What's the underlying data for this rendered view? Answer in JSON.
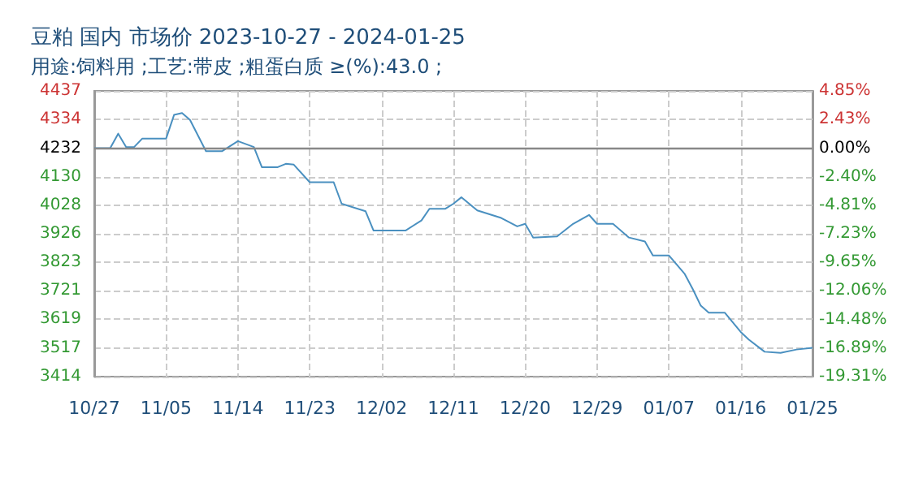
{
  "chart_data": {
    "type": "line",
    "title": "豆粕 国内 市场价 2023-10-27 - 2024-01-25",
    "subtitle": "用途:饲料用 ;工艺:带皮 ;粗蛋白质 ≥(%):43.0 ;",
    "x": [
      "2023-10-27",
      "2023-10-29",
      "2023-10-30",
      "2023-10-31",
      "2023-11-01",
      "2023-11-02",
      "2023-11-05",
      "2023-11-06",
      "2023-11-07",
      "2023-11-08",
      "2023-11-10",
      "2023-11-12",
      "2023-11-14",
      "2023-11-16",
      "2023-11-17",
      "2023-11-19",
      "2023-11-20",
      "2023-11-21",
      "2023-11-23",
      "2023-11-26",
      "2023-11-27",
      "2023-11-30",
      "2023-12-01",
      "2023-12-05",
      "2023-12-07",
      "2023-12-08",
      "2023-12-10",
      "2023-12-11",
      "2023-12-12",
      "2023-12-14",
      "2023-12-17",
      "2023-12-19",
      "2023-12-20",
      "2023-12-21",
      "2023-12-24",
      "2023-12-26",
      "2023-12-28",
      "2023-12-29",
      "2023-12-31",
      "2024-01-02",
      "2024-01-04",
      "2024-01-05",
      "2024-01-07",
      "2024-01-09",
      "2024-01-10",
      "2024-01-11",
      "2024-01-12",
      "2024-01-14",
      "2024-01-16",
      "2024-01-17",
      "2024-01-19",
      "2024-01-21",
      "2024-01-23",
      "2024-01-25"
    ],
    "series": [
      {
        "color": "#4a90c0",
        "values": [
          4232,
          4232,
          4284,
          4236,
          4236,
          4266,
          4266,
          4351,
          4358,
          4333,
          4221,
          4221,
          4257,
          4236,
          4164,
          4164,
          4176,
          4173,
          4110,
          4110,
          4033,
          4006,
          3937,
          3937,
          3973,
          4015,
          4015,
          4033,
          4056,
          4009,
          3982,
          3952,
          3961,
          3912,
          3916,
          3961,
          3993,
          3961,
          3961,
          3912,
          3898,
          3848,
          3848,
          3781,
          3727,
          3668,
          3643,
          3643,
          3574,
          3547,
          3503,
          3499,
          3511,
          3517
        ]
      }
    ],
    "xlim": [
      "2023-10-27",
      "2024-01-25"
    ],
    "xticks": [
      {
        "value": "2023-10-27",
        "label": "10/27"
      },
      {
        "value": "2023-11-05",
        "label": "11/05"
      },
      {
        "value": "2023-11-14",
        "label": "11/14"
      },
      {
        "value": "2023-11-23",
        "label": "11/23"
      },
      {
        "value": "2023-12-02",
        "label": "12/02"
      },
      {
        "value": "2023-12-11",
        "label": "12/11"
      },
      {
        "value": "2023-12-20",
        "label": "12/20"
      },
      {
        "value": "2023-12-29",
        "label": "12/29"
      },
      {
        "value": "2024-01-07",
        "label": "01/07"
      },
      {
        "value": "2024-01-16",
        "label": "01/16"
      },
      {
        "value": "2024-01-25",
        "label": "01/25"
      }
    ],
    "ylim": [
      3414,
      4437
    ],
    "yticks": [
      3414,
      3517,
      3619,
      3721,
      3823,
      3926,
      4028,
      4130,
      4232,
      4334,
      4437
    ],
    "y2lim": [
      -19.31,
      4.85
    ],
    "y2ticks": [
      {
        "value": -19.31,
        "label": "-19.31%"
      },
      {
        "value": -16.89,
        "label": "-16.89%"
      },
      {
        "value": -14.48,
        "label": "-14.48%"
      },
      {
        "value": -12.06,
        "label": "-12.06%"
      },
      {
        "value": -9.65,
        "label": "-9.65%"
      },
      {
        "value": -7.23,
        "label": "-7.23%"
      },
      {
        "value": -4.81,
        "label": "-4.81%"
      },
      {
        "value": -2.4,
        "label": "-2.40%"
      },
      {
        "value": 0,
        "label": "0.00%"
      },
      {
        "value": 2.43,
        "label": "2.43%"
      },
      {
        "value": 4.85,
        "label": "4.85%"
      }
    ],
    "ref_lines": [
      {
        "axis": "y",
        "value": 4232,
        "color": "#888888",
        "line_style": "solid"
      }
    ],
    "grid": true,
    "marker": "none",
    "line_style": "solid"
  }
}
